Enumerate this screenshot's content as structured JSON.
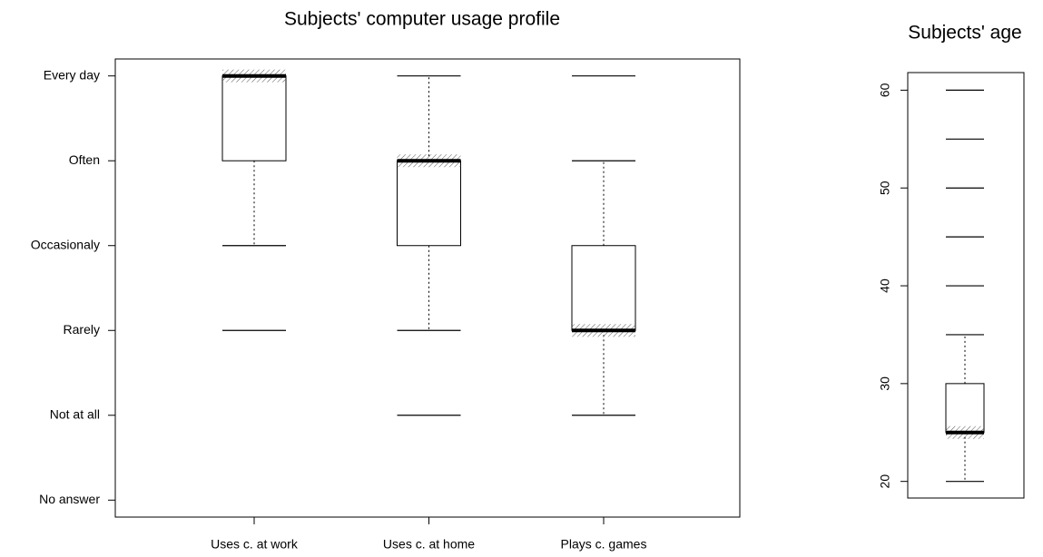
{
  "chart_data": [
    {
      "type": "boxplot",
      "title": "Subjects' computer usage profile",
      "categories": [
        "Uses c. at work",
        "Uses c. at home",
        "Plays c. games"
      ],
      "boxes": [
        {
          "min": 3,
          "q1": 4,
          "median": 5,
          "q3": 5,
          "max": 5,
          "outliers": [
            2
          ]
        },
        {
          "min": 2,
          "q1": 3,
          "median": 4,
          "q3": 4,
          "max": 5,
          "outliers": [
            1
          ]
        },
        {
          "min": 1,
          "q1": 2,
          "median": 2,
          "q3": 3,
          "max": 4,
          "outliers": [
            5
          ]
        }
      ],
      "ylim": [
        -0.2,
        5.2
      ],
      "yticks": [
        {
          "value": 0,
          "label": "No answer"
        },
        {
          "value": 1,
          "label": "Not at all"
        },
        {
          "value": 2,
          "label": "Rarely"
        },
        {
          "value": 3,
          "label": "Occasionaly"
        },
        {
          "value": 4,
          "label": "Often"
        },
        {
          "value": 5,
          "label": "Every day"
        }
      ],
      "color": "#000000"
    },
    {
      "type": "boxplot",
      "title": "Subjects' age",
      "boxes": [
        {
          "min": 20,
          "q1": 25,
          "median": 25,
          "q3": 30,
          "max": 35,
          "outliers": [
            40,
            45,
            50,
            55,
            60
          ]
        }
      ],
      "ylim": [
        18.3,
        61.8
      ],
      "yticks": [
        20,
        30,
        40,
        50,
        60
      ],
      "color": "#000000"
    }
  ]
}
